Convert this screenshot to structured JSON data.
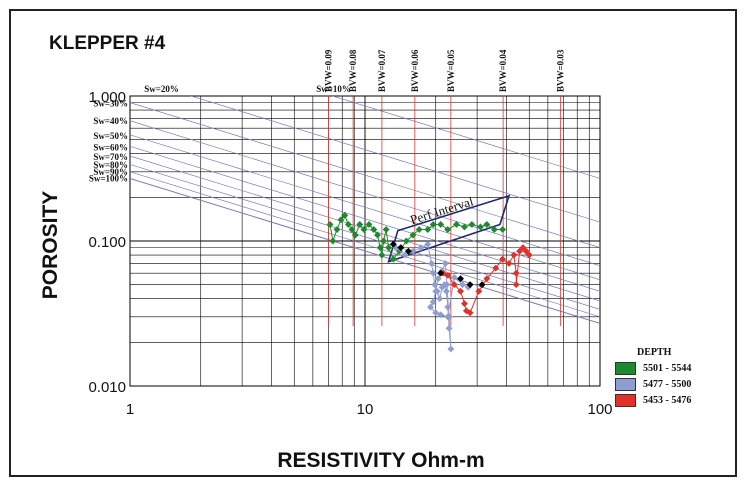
{
  "chart_data": {
    "type": "scatter",
    "title": "KLEPPER #4",
    "xlabel": "RESISTIVITY Ohm-m",
    "ylabel": "POROSITY",
    "xscale": "log",
    "yscale": "log",
    "xlim": [
      1,
      100
    ],
    "ylim": [
      0.01,
      1.0
    ],
    "x_ticks": [
      "1",
      "10",
      "100"
    ],
    "y_ticks": [
      "0.010",
      "0.100",
      "1.000"
    ],
    "grid": true,
    "legend": {
      "title": "DEPTH",
      "placement": "bottom-right",
      "entries": [
        "5501 - 5544",
        "5477 - 5500",
        "5453 - 5476"
      ]
    },
    "sw_lines": [
      {
        "label": "Sw=10%",
        "sw": 0.1,
        "label_x": 6.2,
        "label_y": 1.12,
        "align": "start"
      },
      {
        "label": "Sw=20%",
        "sw": 0.2,
        "label_x": 1.15,
        "label_y": 1.12,
        "align": "start"
      },
      {
        "label": "Sw=30%",
        "sw": 0.3,
        "label_x": 1.0,
        "label_y": 0.89,
        "align": "end"
      },
      {
        "label": "Sw=40%",
        "sw": 0.4,
        "label_x": 1.0,
        "label_y": 0.67,
        "align": "end"
      },
      {
        "label": "Sw=50%",
        "sw": 0.5,
        "label_x": 1.0,
        "label_y": 0.53,
        "align": "end"
      },
      {
        "label": "Sw=60%",
        "sw": 0.6,
        "label_x": 1.0,
        "label_y": 0.44,
        "align": "end"
      },
      {
        "label": "Sw=70%",
        "sw": 0.7,
        "label_x": 1.0,
        "label_y": 0.38,
        "align": "end"
      },
      {
        "label": "Sw=80%",
        "sw": 0.8,
        "label_x": 1.0,
        "label_y": 0.335,
        "align": "end"
      },
      {
        "label": "Sw=90%",
        "sw": 0.9,
        "label_x": 1.0,
        "label_y": 0.3,
        "align": "end"
      },
      {
        "label": "Sw=100%",
        "sw": 1.0,
        "label_x": 1.0,
        "label_y": 0.27,
        "align": "end"
      }
    ],
    "bvw_lines": [
      {
        "label": "BVW=0.09",
        "x": 7.0
      },
      {
        "label": "BVW=0.08",
        "x": 8.9
      },
      {
        "label": "BVW=0.07",
        "x": 11.8
      },
      {
        "label": "BVW=0.06",
        "x": 16.3
      },
      {
        "label": "BVW=0.05",
        "x": 23.2
      },
      {
        "label": "BVW=0.04",
        "x": 38.7
      },
      {
        "label": "BVW=0.03",
        "x": 68.0
      }
    ],
    "annotation": {
      "text": "Perf Interval",
      "box": [
        [
          12.6,
          0.072
        ],
        [
          37.5,
          0.13
        ],
        [
          41.0,
          0.205
        ],
        [
          13.8,
          0.118
        ]
      ]
    },
    "series": [
      {
        "name": "5501 - 5544",
        "color": "#1e8a2e",
        "points": [
          [
            7.1,
            0.13
          ],
          [
            7.3,
            0.1
          ],
          [
            7.6,
            0.12
          ],
          [
            7.9,
            0.14
          ],
          [
            8.2,
            0.15
          ],
          [
            8.5,
            0.13
          ],
          [
            8.8,
            0.12
          ],
          [
            9.1,
            0.11
          ],
          [
            9.5,
            0.13
          ],
          [
            9.9,
            0.12
          ],
          [
            10.4,
            0.13
          ],
          [
            10.9,
            0.12
          ],
          [
            11.3,
            0.11
          ],
          [
            11.6,
            0.09
          ],
          [
            11.8,
            0.08
          ],
          [
            12.0,
            0.1
          ],
          [
            12.3,
            0.12
          ],
          [
            12.6,
            0.09
          ],
          [
            13.2,
            0.075
          ],
          [
            14.0,
            0.085
          ],
          [
            15.0,
            0.1
          ],
          [
            16.0,
            0.11
          ],
          [
            17.0,
            0.12
          ],
          [
            18.5,
            0.12
          ],
          [
            19.5,
            0.13
          ],
          [
            21.0,
            0.13
          ],
          [
            22.5,
            0.12
          ],
          [
            24.5,
            0.13
          ],
          [
            26.5,
            0.125
          ],
          [
            28.5,
            0.13
          ],
          [
            31.0,
            0.125
          ],
          [
            33.0,
            0.13
          ],
          [
            35.5,
            0.12
          ],
          [
            38.5,
            0.12
          ]
        ]
      },
      {
        "name": "5477 - 5500",
        "color": "#8f9ed0",
        "points": [
          [
            13.5,
            0.09
          ],
          [
            14.8,
            0.08
          ],
          [
            16.0,
            0.085
          ],
          [
            17.3,
            0.09
          ],
          [
            18.5,
            0.095
          ],
          [
            19.2,
            0.07
          ],
          [
            19.5,
            0.06
          ],
          [
            19.8,
            0.05
          ],
          [
            20.3,
            0.045
          ],
          [
            20.8,
            0.04
          ],
          [
            21.3,
            0.048
          ],
          [
            21.8,
            0.05
          ],
          [
            22.2,
            0.045
          ],
          [
            22.5,
            0.035
          ],
          [
            22.8,
            0.025
          ],
          [
            23.2,
            0.018
          ],
          [
            22.8,
            0.03
          ],
          [
            22.3,
            0.05
          ],
          [
            22.0,
            0.07
          ],
          [
            21.2,
            0.062
          ],
          [
            20.5,
            0.055
          ],
          [
            20.0,
            0.045
          ],
          [
            19.5,
            0.038
          ],
          [
            19.0,
            0.035
          ],
          [
            20.0,
            0.032
          ],
          [
            21.0,
            0.031
          ],
          [
            22.5,
            0.03
          ],
          [
            24.0,
            0.056
          ],
          [
            26.0,
            0.05
          ],
          [
            27.5,
            0.048
          ]
        ]
      },
      {
        "name": "5453 - 5476",
        "color": "#e0322a",
        "points": [
          [
            21.5,
            0.06
          ],
          [
            22.5,
            0.058
          ],
          [
            24.0,
            0.05
          ],
          [
            25.5,
            0.045
          ],
          [
            26.5,
            0.037
          ],
          [
            27.0,
            0.033
          ],
          [
            28.0,
            0.032
          ],
          [
            30.5,
            0.045
          ],
          [
            33.0,
            0.055
          ],
          [
            36.0,
            0.065
          ],
          [
            38.5,
            0.075
          ],
          [
            41.0,
            0.07
          ],
          [
            43.0,
            0.08
          ],
          [
            44.0,
            0.06
          ],
          [
            44.0,
            0.05
          ],
          [
            45.5,
            0.085
          ],
          [
            47.0,
            0.09
          ],
          [
            48.5,
            0.085
          ],
          [
            50.0,
            0.08
          ]
        ]
      },
      {
        "name": "",
        "color": "#000000",
        "points": [
          [
            13.2,
            0.095
          ],
          [
            14.2,
            0.09
          ],
          [
            15.3,
            0.085
          ],
          [
            21.0,
            0.06
          ],
          [
            25.5,
            0.055
          ],
          [
            28.0,
            0.05
          ],
          [
            31.5,
            0.05
          ]
        ]
      }
    ]
  }
}
